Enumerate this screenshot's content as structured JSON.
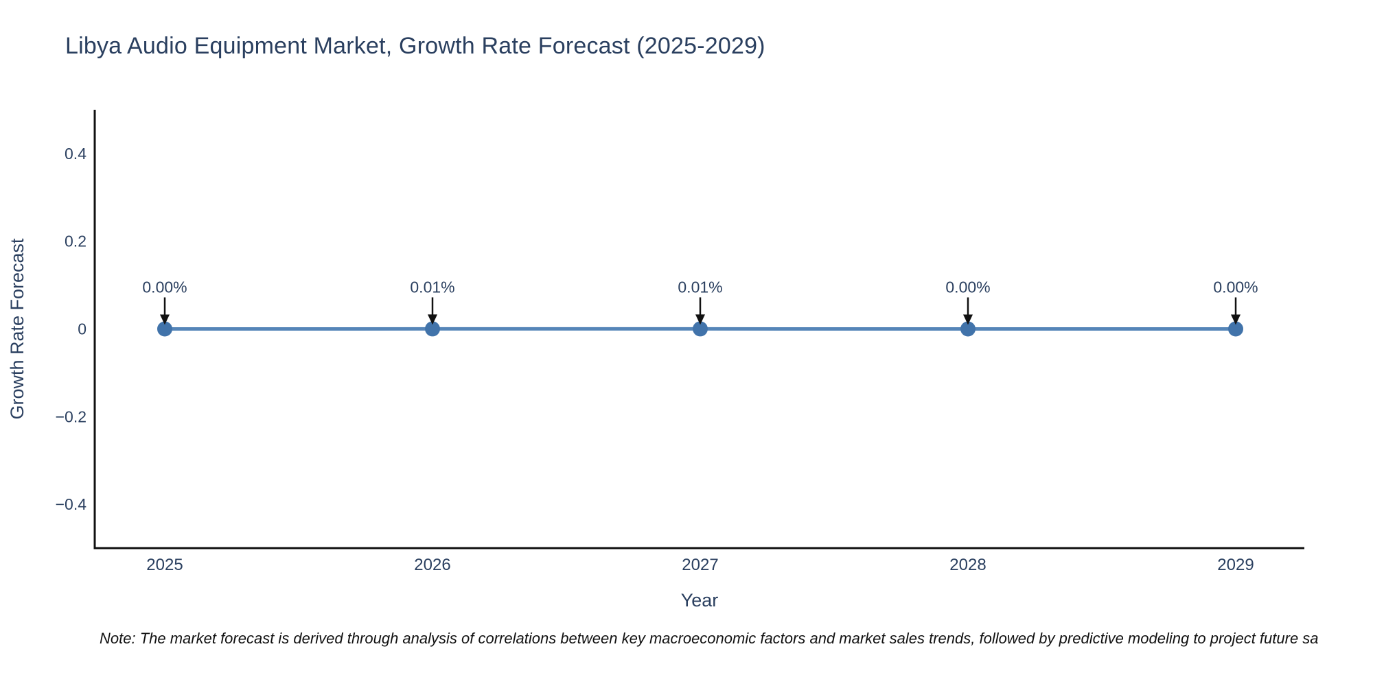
{
  "chart_data": {
    "type": "line",
    "title": "Libya Audio Equipment Market, Growth Rate Forecast (2025-2029)",
    "xlabel": "Year",
    "ylabel": "Growth Rate Forecast",
    "categories": [
      "2025",
      "2026",
      "2027",
      "2028",
      "2029"
    ],
    "series": [
      {
        "name": "Growth Rate Forecast",
        "values": [
          0.0,
          0.0001,
          0.0001,
          0.0,
          0.0
        ],
        "point_labels": [
          "0.00%",
          "0.01%",
          "0.01%",
          "0.00%",
          "0.00%"
        ]
      }
    ],
    "ylim": [
      -0.5,
      0.5
    ],
    "yticks": [
      0.4,
      0.2,
      0,
      -0.2,
      -0.4
    ],
    "ytick_labels": [
      "0.4",
      "0.2",
      "0",
      "−0.2",
      "−0.4"
    ],
    "grid": false,
    "legend_position": "none",
    "line_color": "#5585b8",
    "marker_color": "#4173aa",
    "arrow_color": "#111111",
    "axis_color": "#111111",
    "text_color": "#2a3f5f"
  },
  "note": {
    "text": "Note: The market forecast is derived through analysis of correlations between key macroeconomic factors and market sales trends, followed by predictive modeling to project future sa"
  }
}
